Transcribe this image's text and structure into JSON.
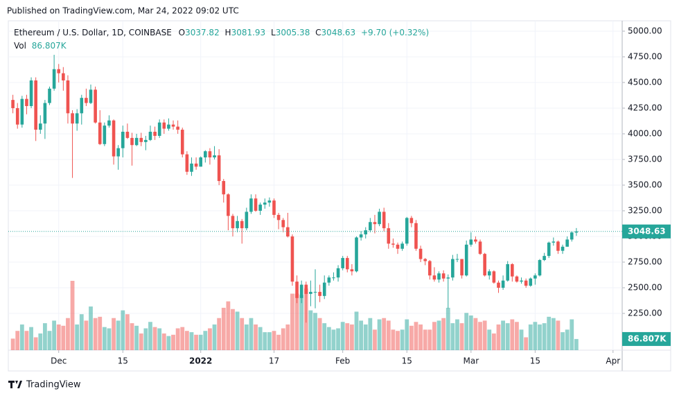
{
  "published": "Published on TradingView.com, Mar 24, 2022 09:02 UTC",
  "brand": "TradingView",
  "chart_data": {
    "type": "candlestick",
    "title": "Ethereum / U.S. Dollar, 1D, COINBASE",
    "legend_labels": {
      "open": "O",
      "high": "H",
      "low": "L",
      "close": "C",
      "volume": "Vol"
    },
    "change": "+9.70 (+0.32%)",
    "up_color": "#26a69a",
    "down_color": "#ef5350",
    "xlim": [
      "2021-11-20",
      "2022-04-03"
    ],
    "xticks": [
      {
        "value": "2021-12-01",
        "label": "Dec"
      },
      {
        "value": "2021-12-15",
        "label": "15"
      },
      {
        "value": "2022-01-01",
        "label": "2022"
      },
      {
        "value": "2022-01-17",
        "label": "17"
      },
      {
        "value": "2022-02-01",
        "label": "Feb"
      },
      {
        "value": "2022-02-15",
        "label": "15"
      },
      {
        "value": "2022-03-01",
        "label": "Mar"
      },
      {
        "value": "2022-03-15",
        "label": "15"
      },
      {
        "value": "2022-04-01",
        "label": "Apr"
      }
    ],
    "ylim": [
      1892,
      5101
    ],
    "yticks": [
      {
        "value": 2250,
        "label": "2250.00"
      },
      {
        "value": 2500,
        "label": "2500.00"
      },
      {
        "value": 2750,
        "label": "2750.00"
      },
      {
        "value": 3000,
        "label": "3000.00"
      },
      {
        "value": 3250,
        "label": "3250.00"
      },
      {
        "value": 3500,
        "label": "3500.00"
      },
      {
        "value": 3750,
        "label": "3750.00"
      },
      {
        "value": 4000,
        "label": "4000.00"
      },
      {
        "value": 4250,
        "label": "4250.00"
      },
      {
        "value": 4500,
        "label": "4500.00"
      },
      {
        "value": 4750,
        "label": "4750.00"
      },
      {
        "value": 5000,
        "label": "5000.00"
      }
    ],
    "x": [
      "2021-11-21",
      "2021-11-22",
      "2021-11-23",
      "2021-11-24",
      "2021-11-25",
      "2021-11-26",
      "2021-11-27",
      "2021-11-28",
      "2021-11-29",
      "2021-11-30",
      "2021-12-01",
      "2021-12-02",
      "2021-12-03",
      "2021-12-04",
      "2021-12-05",
      "2021-12-06",
      "2021-12-07",
      "2021-12-08",
      "2021-12-09",
      "2021-12-10",
      "2021-12-11",
      "2021-12-12",
      "2021-12-13",
      "2021-12-14",
      "2021-12-15",
      "2021-12-16",
      "2021-12-17",
      "2021-12-18",
      "2021-12-19",
      "2021-12-20",
      "2021-12-21",
      "2021-12-22",
      "2021-12-23",
      "2021-12-24",
      "2021-12-25",
      "2021-12-26",
      "2021-12-27",
      "2021-12-28",
      "2021-12-29",
      "2021-12-30",
      "2021-12-31",
      "2022-01-01",
      "2022-01-02",
      "2022-01-03",
      "2022-01-04",
      "2022-01-05",
      "2022-01-06",
      "2022-01-07",
      "2022-01-08",
      "2022-01-09",
      "2022-01-10",
      "2022-01-11",
      "2022-01-12",
      "2022-01-13",
      "2022-01-14",
      "2022-01-15",
      "2022-01-16",
      "2022-01-17",
      "2022-01-18",
      "2022-01-19",
      "2022-01-20",
      "2022-01-21",
      "2022-01-22",
      "2022-01-23",
      "2022-01-24",
      "2022-01-25",
      "2022-01-26",
      "2022-01-27",
      "2022-01-28",
      "2022-01-29",
      "2022-01-30",
      "2022-01-31",
      "2022-02-01",
      "2022-02-02",
      "2022-02-03",
      "2022-02-04",
      "2022-02-05",
      "2022-02-06",
      "2022-02-07",
      "2022-02-08",
      "2022-02-09",
      "2022-02-10",
      "2022-02-11",
      "2022-02-12",
      "2022-02-13",
      "2022-02-14",
      "2022-02-15",
      "2022-02-16",
      "2022-02-17",
      "2022-02-18",
      "2022-02-19",
      "2022-02-20",
      "2022-02-21",
      "2022-02-22",
      "2022-02-23",
      "2022-02-24",
      "2022-02-25",
      "2022-02-26",
      "2022-02-27",
      "2022-02-28",
      "2022-03-01",
      "2022-03-02",
      "2022-03-03",
      "2022-03-04",
      "2022-03-05",
      "2022-03-06",
      "2022-03-07",
      "2022-03-08",
      "2022-03-09",
      "2022-03-10",
      "2022-03-11",
      "2022-03-12",
      "2022-03-13",
      "2022-03-14",
      "2022-03-15",
      "2022-03-16",
      "2022-03-17",
      "2022-03-18",
      "2022-03-19",
      "2022-03-20",
      "2022-03-21",
      "2022-03-22",
      "2022-03-23",
      "2022-03-24"
    ],
    "open": [
      4330,
      4250,
      4090,
      4340,
      4270,
      4520,
      4040,
      4100,
      4300,
      4440,
      4630,
      4590,
      4520,
      4200,
      4100,
      4200,
      4350,
      4300,
      4430,
      4110,
      3900,
      4080,
      4130,
      3780,
      3860,
      4020,
      3960,
      3890,
      3960,
      3920,
      3940,
      4020,
      3980,
      4110,
      4050,
      4090,
      4070,
      4040,
      3800,
      3630,
      3710,
      3680,
      3770,
      3830,
      3770,
      3790,
      3540,
      3410,
      3200,
      3080,
      3150,
      3080,
      3240,
      3370,
      3250,
      3310,
      3330,
      3350,
      3210,
      3160,
      3090,
      3000,
      2560,
      2400,
      2530,
      2440,
      2460,
      2460,
      2420,
      2550,
      2600,
      2600,
      2690,
      2790,
      2680,
      2660,
      2990,
      3020,
      3060,
      3140,
      3120,
      3240,
      3080,
      2930,
      2920,
      2880,
      2930,
      3180,
      3130,
      2880,
      2780,
      2760,
      2620,
      2580,
      2640,
      2590,
      2600,
      2780,
      2780,
      2620,
      2920,
      2970,
      2950,
      2830,
      2620,
      2660,
      2550,
      2500,
      2570,
      2730,
      2610,
      2560,
      2570,
      2520,
      2590,
      2620,
      2770,
      2810,
      2940,
      2950,
      2860,
      2900,
      2970,
      3037.82
    ],
    "high": [
      4380,
      4300,
      4370,
      4380,
      4550,
      4550,
      4180,
      4330,
      4460,
      4770,
      4680,
      4650,
      4570,
      4230,
      4240,
      4380,
      4440,
      4480,
      4460,
      4230,
      4110,
      4180,
      4140,
      3890,
      4080,
      4100,
      4010,
      4000,
      4010,
      3980,
      4080,
      4070,
      4140,
      4140,
      4150,
      4130,
      4130,
      4060,
      3830,
      3770,
      3770,
      3780,
      3840,
      3860,
      3880,
      3850,
      3560,
      3420,
      3220,
      3200,
      3170,
      3280,
      3410,
      3410,
      3330,
      3370,
      3380,
      3370,
      3230,
      3180,
      3230,
      3020,
      2620,
      2570,
      2560,
      2570,
      2680,
      2530,
      2620,
      2620,
      2650,
      2720,
      2810,
      2810,
      2730,
      3000,
      3050,
      3090,
      3180,
      3210,
      3270,
      3280,
      3130,
      2980,
      2940,
      2950,
      3190,
      3200,
      3160,
      2910,
      2790,
      2770,
      2700,
      2660,
      2670,
      2630,
      2820,
      2830,
      2780,
      2960,
      3040,
      3000,
      2970,
      2840,
      2680,
      2670,
      2570,
      2620,
      2760,
      2740,
      2620,
      2600,
      2590,
      2600,
      2640,
      2780,
      2840,
      2950,
      2990,
      2960,
      2920,
      3000,
      3050,
      3081.93
    ],
    "low": [
      4200,
      4050,
      4060,
      4190,
      4250,
      3930,
      4000,
      3950,
      4280,
      4420,
      4500,
      4420,
      4100,
      3570,
      4030,
      4090,
      4270,
      4290,
      4100,
      3890,
      3880,
      4060,
      3700,
      3650,
      3770,
      3950,
      3690,
      3880,
      3880,
      3840,
      3930,
      3940,
      3960,
      4000,
      4030,
      4040,
      4000,
      3770,
      3600,
      3590,
      3650,
      3680,
      3720,
      3700,
      3750,
      3500,
      3330,
      3060,
      3000,
      3040,
      2930,
      3060,
      3220,
      3240,
      3210,
      3270,
      3290,
      3180,
      3070,
      3040,
      2990,
      2520,
      2350,
      2350,
      2160,
      2320,
      2300,
      2360,
      2390,
      2520,
      2570,
      2560,
      2670,
      2650,
      2620,
      2650,
      2960,
      2980,
      3040,
      3030,
      3100,
      3050,
      2880,
      2890,
      2830,
      2860,
      2910,
      3090,
      2860,
      2750,
      2720,
      2580,
      2560,
      2550,
      2560,
      2300,
      2570,
      2750,
      2590,
      2610,
      2900,
      2930,
      2820,
      2610,
      2580,
      2540,
      2450,
      2480,
      2560,
      2560,
      2550,
      2540,
      2500,
      2510,
      2530,
      2610,
      2760,
      2790,
      2910,
      2830,
      2830,
      2900,
      2950,
      3005.38
    ],
    "close": [
      4250,
      4090,
      4340,
      4270,
      4520,
      4040,
      4100,
      4300,
      4440,
      4630,
      4590,
      4520,
      4200,
      4100,
      4200,
      4350,
      4300,
      4430,
      4110,
      3900,
      4080,
      4130,
      3780,
      3860,
      4020,
      3960,
      3890,
      3960,
      3920,
      3940,
      4020,
      3980,
      4110,
      4050,
      4090,
      4070,
      4040,
      3800,
      3630,
      3710,
      3680,
      3770,
      3830,
      3770,
      3790,
      3540,
      3410,
      3200,
      3080,
      3150,
      3080,
      3240,
      3370,
      3250,
      3310,
      3330,
      3350,
      3210,
      3160,
      3090,
      3000,
      2560,
      2400,
      2530,
      2440,
      2460,
      2460,
      2420,
      2550,
      2600,
      2600,
      2690,
      2790,
      2680,
      2660,
      2990,
      3020,
      3060,
      3140,
      3120,
      3240,
      3080,
      2930,
      2920,
      2880,
      2930,
      3180,
      3130,
      2880,
      2780,
      2760,
      2620,
      2580,
      2640,
      2590,
      2600,
      2780,
      2780,
      2620,
      2920,
      2970,
      2950,
      2830,
      2620,
      2660,
      2550,
      2500,
      2570,
      2730,
      2610,
      2560,
      2570,
      2520,
      2590,
      2620,
      2770,
      2810,
      2940,
      2950,
      2860,
      2900,
      2970,
      3038.93,
      3048.63
    ],
    "volume": [
      90,
      150,
      200,
      150,
      180,
      100,
      130,
      210,
      150,
      230,
      200,
      190,
      250,
      540,
      200,
      280,
      230,
      340,
      250,
      260,
      180,
      170,
      250,
      230,
      310,
      280,
      210,
      190,
      130,
      170,
      220,
      180,
      170,
      130,
      110,
      120,
      170,
      180,
      150,
      140,
      120,
      120,
      150,
      170,
      200,
      250,
      330,
      380,
      320,
      300,
      250,
      200,
      250,
      200,
      180,
      140,
      140,
      150,
      120,
      170,
      200,
      440,
      440,
      430,
      480,
      310,
      290,
      250,
      210,
      180,
      160,
      170,
      220,
      210,
      200,
      300,
      230,
      200,
      250,
      160,
      240,
      250,
      230,
      160,
      150,
      160,
      240,
      190,
      220,
      200,
      160,
      160,
      220,
      230,
      250,
      330,
      210,
      240,
      210,
      290,
      270,
      250,
      220,
      230,
      160,
      130,
      200,
      230,
      210,
      240,
      220,
      160,
      100,
      200,
      220,
      200,
      210,
      260,
      250,
      230,
      140,
      160,
      240,
      86.807
    ],
    "volume_label": "86.807K"
  }
}
